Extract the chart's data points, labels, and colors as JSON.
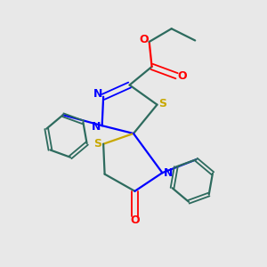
{
  "background_color": "#e8e8e8",
  "bond_color": "#2d6b5e",
  "N_color": "#0000ff",
  "O_color": "#ff0000",
  "S_color": "#c8a800",
  "figsize": [
    3.0,
    3.0
  ],
  "dpi": 100,
  "xlim": [
    0,
    10
  ],
  "ylim": [
    0,
    10
  ]
}
